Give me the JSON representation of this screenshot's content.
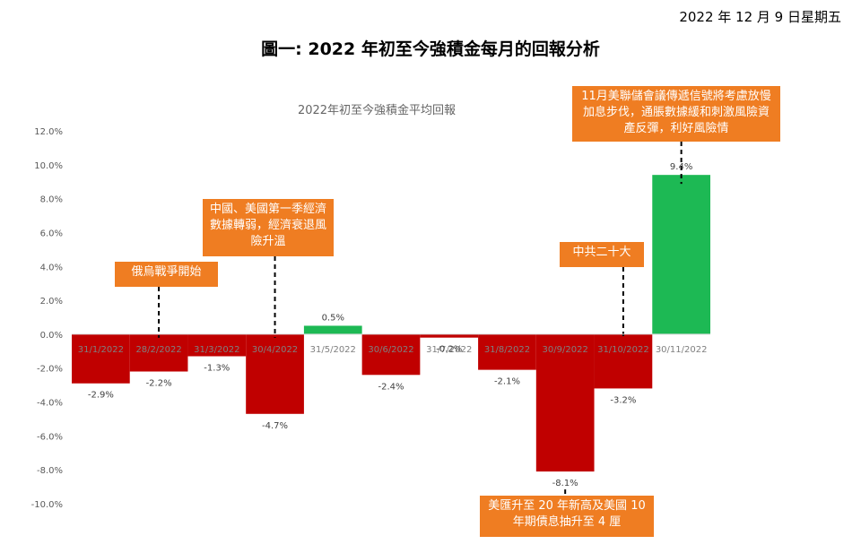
{
  "header": {
    "date": "2022 年 12 月 9 日星期五",
    "title": "圖一: 2022 年初至今強積金每月的回報分析"
  },
  "annotations": [
    {
      "text": "俄烏戰爭開始",
      "category": "28/2/2022"
    },
    {
      "text": "中國、美國第一季經濟數據轉弱，經濟衰退風險升溫",
      "category": "30/4/2022"
    },
    {
      "text": "中共二十大",
      "category": "31/10/2022"
    },
    {
      "text": "11月美聯儲會議傳遞信號將考慮放慢加息步伐，通脹數據緩和刺激風險資產反彈，利好風險情",
      "category": "30/11/2022"
    },
    {
      "text": "美匯升至 20 年新高及美國 10 年期債息抽升至 4 厘",
      "category": "30/9/2022"
    }
  ],
  "chart_data": {
    "type": "bar",
    "title": "2022年初至今強積金平均回報",
    "xlabel": "",
    "ylabel": "",
    "categories": [
      "31/1/2022",
      "28/2/2022",
      "31/3/2022",
      "30/4/2022",
      "31/5/2022",
      "30/6/2022",
      "31/7/2022",
      "31/8/2022",
      "30/9/2022",
      "31/10/2022",
      "30/11/2022"
    ],
    "values": [
      -2.9,
      -2.2,
      -1.3,
      -4.7,
      0.5,
      -2.4,
      -0.2,
      -2.1,
      -8.1,
      -3.2,
      9.4
    ],
    "value_labels": [
      "-2.9%",
      "-2.2%",
      "-1.3%",
      "-4.7%",
      "0.5%",
      "-2.4%",
      "-0.2%",
      "-2.1%",
      "-8.1%",
      "-3.2%",
      "9.4%"
    ],
    "ylim": [
      -10,
      12
    ],
    "yticks": [
      "-10.0%",
      "-8.0%",
      "-6.0%",
      "-4.0%",
      "-2.0%",
      "0.0%",
      "2.0%",
      "4.0%",
      "6.0%",
      "8.0%",
      "10.0%",
      "12.0%"
    ],
    "ytick_values": [
      -10,
      -8,
      -6,
      -4,
      -2,
      0,
      2,
      4,
      6,
      8,
      10,
      12
    ],
    "grid": false,
    "colors": {
      "negative": "#c00000",
      "positive": "#1db954",
      "callout": "#ef7d22"
    }
  }
}
